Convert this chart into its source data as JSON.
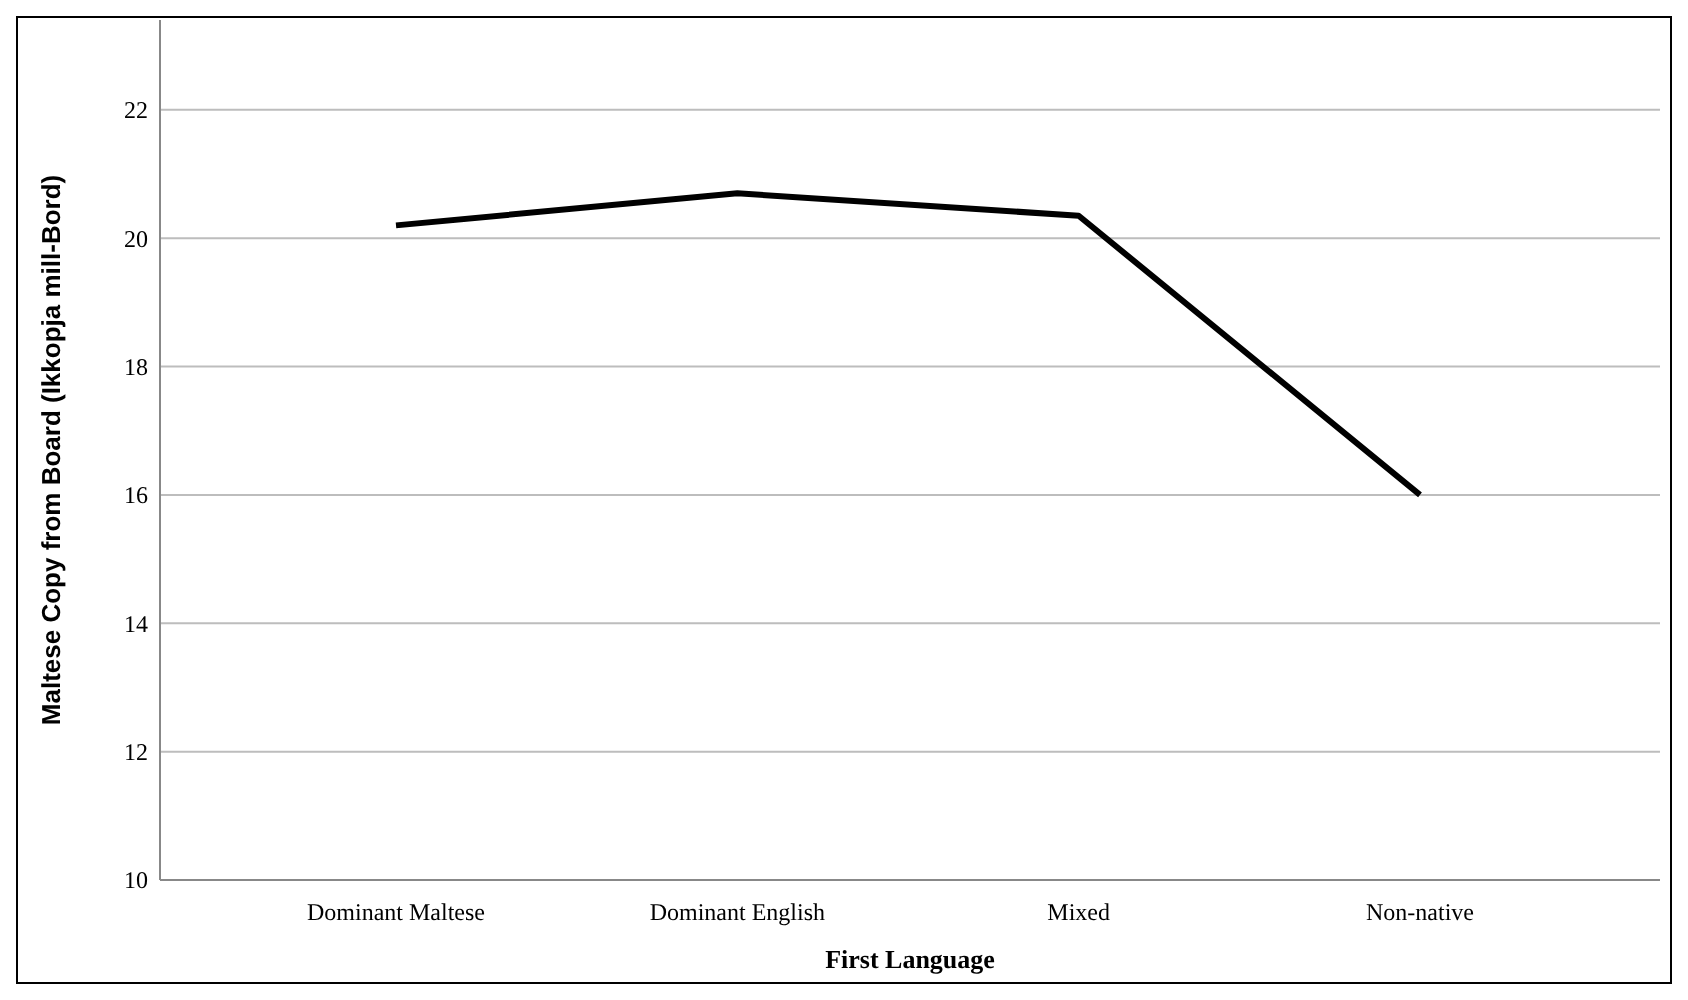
{
  "chart_data": {
    "type": "line",
    "xlabel": "First Language",
    "ylabel": "Maltese Copy from Board (Ikkopja mill-Bord)",
    "categories": [
      "Dominant Maltese",
      "Dominant English",
      "Mixed",
      "Non-native"
    ],
    "series": [
      {
        "color": "#000000",
        "values": [
          20.2,
          20.7,
          20.35,
          16.0
        ]
      }
    ],
    "ylim": [
      10,
      23.4
    ],
    "yticks": [
      10,
      12,
      14,
      16,
      18,
      20,
      22
    ],
    "grid": "y",
    "marker": "none",
    "line_style": "solid"
  }
}
